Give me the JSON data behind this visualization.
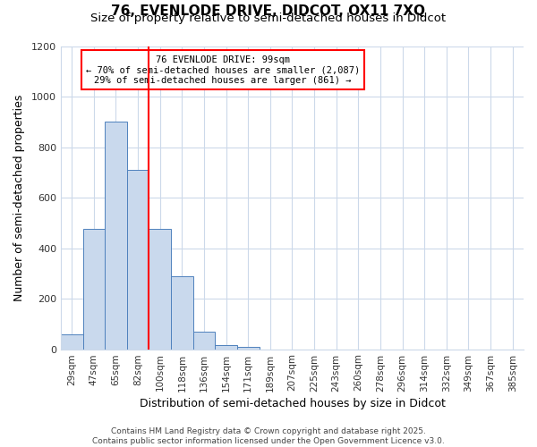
{
  "title_line1": "76, EVENLODE DRIVE, DIDCOT, OX11 7XQ",
  "title_line2": "Size of property relative to semi-detached houses in Didcot",
  "xlabel": "Distribution of semi-detached houses by size in Didcot",
  "ylabel": "Number of semi-detached properties",
  "bar_labels": [
    "29sqm",
    "47sqm",
    "65sqm",
    "82sqm",
    "100sqm",
    "118sqm",
    "136sqm",
    "154sqm",
    "171sqm",
    "189sqm",
    "207sqm",
    "225sqm",
    "243sqm",
    "260sqm",
    "278sqm",
    "296sqm",
    "314sqm",
    "332sqm",
    "349sqm",
    "367sqm",
    "385sqm"
  ],
  "bar_values": [
    60,
    475,
    900,
    710,
    475,
    290,
    70,
    15,
    10,
    0,
    0,
    0,
    0,
    0,
    0,
    0,
    0,
    0,
    0,
    0,
    0
  ],
  "bar_color": "#c9d9ed",
  "bar_edge_color": "#4f81bd",
  "vline_position": 3.5,
  "vline_color": "red",
  "annotation_title": "76 EVENLODE DRIVE: 99sqm",
  "annotation_line1": "← 70% of semi-detached houses are smaller (2,087)",
  "annotation_line2": "29% of semi-detached houses are larger (861) →",
  "annotation_box_color": "red",
  "ylim": [
    0,
    1200
  ],
  "yticks": [
    0,
    200,
    400,
    600,
    800,
    1000,
    1200
  ],
  "bg_color": "#ffffff",
  "plot_bg_color": "#ffffff",
  "grid_color": "#ccd9ea",
  "footer_line1": "Contains HM Land Registry data © Crown copyright and database right 2025.",
  "footer_line2": "Contains public sector information licensed under the Open Government Licence v3.0.",
  "title_fontsize": 11,
  "subtitle_fontsize": 9.5,
  "axis_label_fontsize": 9,
  "tick_fontsize": 7.5,
  "footer_fontsize": 6.5
}
